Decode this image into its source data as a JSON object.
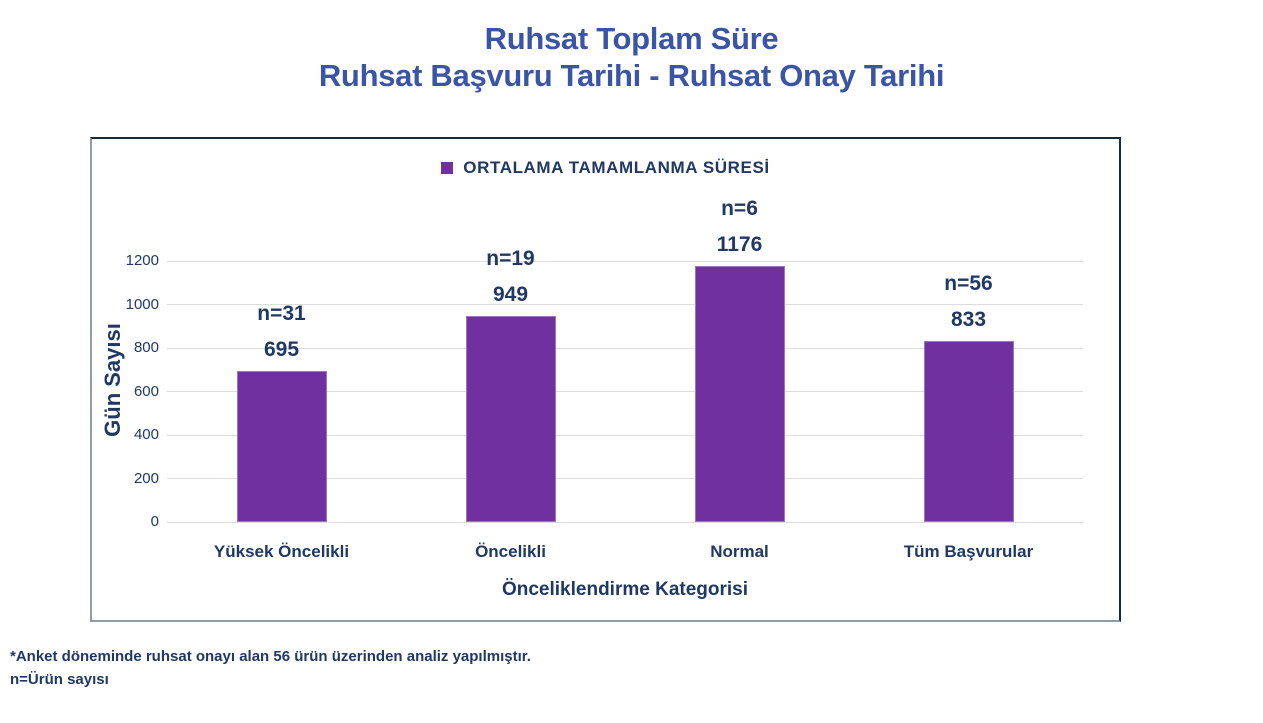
{
  "title": {
    "line1": "Ruhsat Toplam Süre",
    "line2": "Ruhsat Başvuru Tarihi - Ruhsat Onay Tarihi",
    "color": "#3B55A6"
  },
  "legend": {
    "label": "ORTALAMA TAMAMLANMA SÜRESİ",
    "marker_color": "#7030A0"
  },
  "chart_data": {
    "type": "bar",
    "categories": [
      "Yüksek Öncelikli",
      "Öncelikli",
      "Normal",
      "Tüm Başvurular"
    ],
    "series": [
      {
        "name": "ORTALAMA TAMAMLANMA SÜRESİ",
        "color": "#7030A0",
        "values": [
          695,
          949,
          1176,
          833
        ]
      }
    ],
    "bar_value_labels": [
      "695",
      "949",
      "1176",
      "833"
    ],
    "n_labels": [
      "n=31",
      "n=19",
      "n=6",
      "n=56"
    ],
    "xlabel": "Önceliklendirme Kategorisi",
    "ylabel": "Gün Sayısı",
    "ylim": [
      0,
      1200
    ],
    "ytick_step": 200,
    "yticks": [
      0,
      200,
      400,
      600,
      800,
      1000,
      1200
    ],
    "grid": true,
    "legend_position": "top-center",
    "gridline_color": "#DCDCDC",
    "label_color": "#1F3864"
  },
  "footnotes": {
    "line1": "*Anket döneminde ruhsat onayı alan 56 ürün üzerinden analiz yapılmıştır.",
    "line2": "n=Ürün sayısı"
  }
}
